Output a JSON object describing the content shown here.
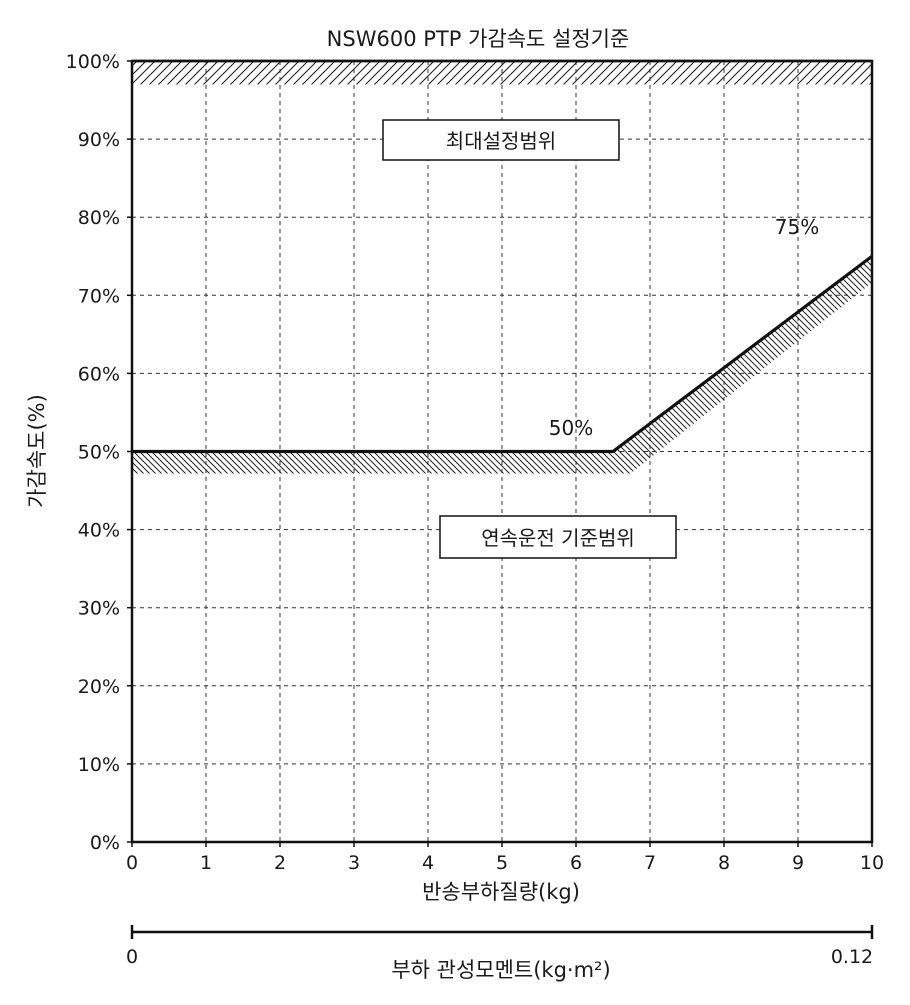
{
  "chart_data": {
    "type": "line",
    "title": "NSW600 PTP 가감속도 설정기준",
    "xlabel": "반송부하질량(kg)",
    "ylabel": "가감속도(%)",
    "xlim": [
      0,
      10
    ],
    "ylim": [
      0,
      100
    ],
    "x_ticks": [
      "0",
      "1",
      "2",
      "3",
      "4",
      "5",
      "6",
      "7",
      "8",
      "9",
      "10"
    ],
    "y_ticks": [
      "0%",
      "10%",
      "20%",
      "30%",
      "40%",
      "50%",
      "60%",
      "70%",
      "80%",
      "90%",
      "100%"
    ],
    "grid": true,
    "grid_style": "dashed",
    "series": [
      {
        "x": [
          0,
          6.5,
          10
        ],
        "y": [
          50,
          50,
          75
        ]
      }
    ],
    "upper_limit": 100,
    "annotations": {
      "max_region": "최대설정범위",
      "continuous_region": "연속운전 기준범위",
      "point_50": "50%",
      "point_75": "75%"
    },
    "secondary_axis": {
      "label": "부하 관성모멘트(kg·m²)",
      "min_label": "0",
      "max_label": "0.12",
      "range": [
        0,
        0.12
      ]
    },
    "colors": {
      "line": "#111111",
      "grid": "#333333",
      "hatch": "#222222"
    }
  }
}
